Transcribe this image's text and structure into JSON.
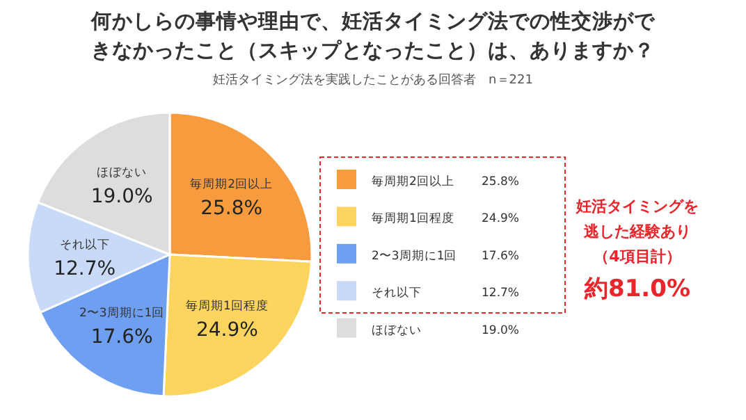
{
  "chart_data": {
    "type": "pie",
    "title": "何かしらの事情や理由で、妊活タイミング法での性交渉ができなかったこと（スキップとなったこと）は、ありますか？",
    "subtitle": "妊活タイミング法を実践したことがある回答者　n＝221",
    "categories": [
      "毎周期2回以上",
      "毎周期1回程度",
      "2〜3周期に1回",
      "それ以下",
      "ほぼない"
    ],
    "values": [
      25.8,
      24.9,
      17.6,
      12.7,
      19.0
    ],
    "colors": [
      "#f89b3e",
      "#fdd55e",
      "#6e9ff0",
      "#c8daf7",
      "#dddddd"
    ],
    "value_labels": [
      "25.8%",
      "24.9%",
      "17.6%",
      "12.7%",
      "19.0%"
    ],
    "legend": "right",
    "annotations": [
      "妊活タイミングを逃した経験あり（4項目計）",
      "約81.0%"
    ]
  }
}
